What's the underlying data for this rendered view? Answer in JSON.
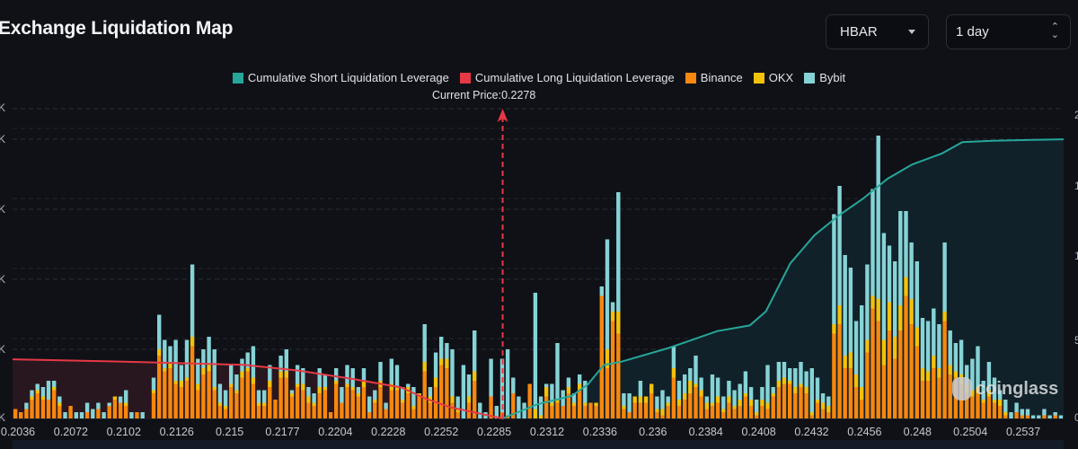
{
  "header": {
    "title": "Exchange Liquidation Map",
    "coin_select": {
      "value": "HBAR"
    },
    "period_select": {
      "value": "1 day"
    }
  },
  "watermark": "coinglass",
  "chart_data": {
    "type": "bar",
    "title": "Exchange Liquidation Map",
    "annotation": "Current Price:0.2278",
    "current_price": 0.2278,
    "legend": [
      {
        "name": "Cumulative Short Liquidation Leverage",
        "color": "#26a69a"
      },
      {
        "name": "Cumulative Long Liquidation Leverage",
        "color": "#e53945"
      },
      {
        "name": "Binance",
        "color": "#f7870f"
      },
      {
        "name": "OKX",
        "color": "#f2c10b"
      },
      {
        "name": "Bybit",
        "color": "#86d3d6"
      }
    ],
    "legend_position": "top-center",
    "x_tick_labels": [
      "0.2036",
      "0.2072",
      "0.2102",
      "0.2126",
      "0.215",
      "0.2177",
      "0.2204",
      "0.2228",
      "0.2252",
      "0.2285",
      "0.2312",
      "0.2336",
      "0.236",
      "0.2384",
      "0.2408",
      "0.2432",
      "0.2456",
      "0.248",
      "0.2504",
      "0.2537"
    ],
    "x_range": [
      0.2036,
      0.2555
    ],
    "left_axis_tick_labels": [
      "K",
      "K",
      "K",
      "K",
      "K",
      "K"
    ],
    "right_axis_tick_labels": [
      "2",
      "1",
      "1",
      "5",
      "0"
    ],
    "left_axis_relative_range": [
      0,
      1
    ],
    "right_axis_relative_range": [
      0,
      1
    ],
    "grid": true,
    "bars_note": "Stacked per price bin: binance, okx, bybit (relative to tallest bar = 1.0)",
    "series": [
      {
        "name": "Binance",
        "values": [
          0.03,
          0.02,
          0.03,
          0.06,
          0.08,
          0.06,
          0.06,
          0.09,
          0.04,
          0.0,
          0.04,
          0.0,
          0.0,
          0.02,
          0.0,
          0.03,
          0.0,
          0.04,
          0.06,
          0.05,
          0.04,
          0.0,
          0.02,
          0.0,
          0.0,
          0.08,
          0.2,
          0.15,
          0.16,
          0.11,
          0.1,
          0.12,
          0.23,
          0.09,
          0.14,
          0.15,
          0.09,
          0.04,
          0.03,
          0.1,
          0.08,
          0.13,
          0.15,
          0.11,
          0.04,
          0.04,
          0.1,
          0.06,
          0.13,
          0.13,
          0.07,
          0.1,
          0.09,
          0.05,
          0.04,
          0.08,
          0.09,
          0.02,
          0.11,
          0.05,
          0.1,
          0.09,
          0.07,
          0.1,
          0.02,
          0.05,
          0.1,
          0.03,
          0.09,
          0.09,
          0.05,
          0.08,
          0.03,
          0.07,
          0.15,
          0.05,
          0.1,
          0.17,
          0.16,
          0.05,
          0.02,
          0.0,
          0.05,
          0.12,
          0.0,
          0.0,
          0.07,
          0.0,
          0.02,
          0.01,
          0.08,
          0.0,
          0.0,
          0.11,
          0.0,
          0.0,
          0.07,
          0.04,
          0.05,
          0.04,
          0.08,
          0.04,
          0.09,
          0.04,
          0.05,
          0.04,
          0.39,
          0.16,
          0.31,
          0.27,
          0.03,
          0.02,
          0.05,
          0.05,
          0.05,
          0.08,
          0.02,
          0.01,
          0.04,
          0.13,
          0.04,
          0.06,
          0.08,
          0.1,
          0.07,
          0.03,
          0.04,
          0.05,
          0.02,
          0.05,
          0.03,
          0.04,
          0.07,
          0.04,
          0.01,
          0.04,
          0.03,
          0.07,
          0.1,
          0.11,
          0.11,
          0.08,
          0.1,
          0.08,
          0.01,
          0.05,
          0.03,
          0.02,
          0.27,
          0.3,
          0.16,
          0.16,
          0.1,
          0.06,
          0.21,
          0.35,
          0.31,
          0.17,
          0.28,
          0.19,
          0.28,
          0.39,
          0.3,
          0.23,
          0.12,
          0.12,
          0.16,
          0.13,
          0.31,
          0.14,
          0.13,
          0.11,
          0.08,
          0.07,
          0.08,
          0.05,
          0.07,
          0.05,
          0.04,
          0.01,
          0.0,
          0.02,
          0.01,
          0.01,
          0.0,
          0.0,
          0.01,
          0.0,
          0.01,
          0.0
        ]
      },
      {
        "name": "OKX",
        "values": [
          0.0,
          0.0,
          0.0,
          0.01,
          0.01,
          0.01,
          0.0,
          0.01,
          0.01,
          0.0,
          0.0,
          0.0,
          0.0,
          0.0,
          0.0,
          0.0,
          0.0,
          0.0,
          0.01,
          0.0,
          0.01,
          0.0,
          0.0,
          0.0,
          0.0,
          0.01,
          0.02,
          0.01,
          0.02,
          0.01,
          0.02,
          0.01,
          0.03,
          0.02,
          0.02,
          0.02,
          0.01,
          0.01,
          0.01,
          0.01,
          0.01,
          0.02,
          0.01,
          0.02,
          0.01,
          0.01,
          0.02,
          0.0,
          0.02,
          0.02,
          0.01,
          0.01,
          0.02,
          0.02,
          0.01,
          0.02,
          0.01,
          0.0,
          0.01,
          0.0,
          0.01,
          0.01,
          0.01,
          0.02,
          0.0,
          0.01,
          0.02,
          0.0,
          0.02,
          0.01,
          0.01,
          0.02,
          0.01,
          0.01,
          0.03,
          0.02,
          0.03,
          0.02,
          0.03,
          0.02,
          0.01,
          0.0,
          0.02,
          0.03,
          0.0,
          0.0,
          0.0,
          0.0,
          0.0,
          0.0,
          0.0,
          0.0,
          0.0,
          0.0,
          0.03,
          0.01,
          0.03,
          0.01,
          0.01,
          0.0,
          0.02,
          0.01,
          0.02,
          0.01,
          0.0,
          0.01,
          0.0,
          0.06,
          0.03,
          0.07,
          0.01,
          0.0,
          0.02,
          0.02,
          0.02,
          0.03,
          0.01,
          0.02,
          0.01,
          0.03,
          0.02,
          0.02,
          0.04,
          0.01,
          0.02,
          0.02,
          0.01,
          0.02,
          0.01,
          0.02,
          0.01,
          0.02,
          0.01,
          0.02,
          0.01,
          0.02,
          0.02,
          0.01,
          0.02,
          0.02,
          0.01,
          0.02,
          0.01,
          0.02,
          0.01,
          0.01,
          0.02,
          0.02,
          0.03,
          0.06,
          0.04,
          0.05,
          0.04,
          0.04,
          0.04,
          0.04,
          0.07,
          0.08,
          0.09,
          0.07,
          0.08,
          0.06,
          0.08,
          0.06,
          0.04,
          0.03,
          0.04,
          0.03,
          0.03,
          0.03,
          0.02,
          0.03,
          0.03,
          0.02,
          0.02,
          0.01,
          0.02,
          0.01,
          0.02,
          0.01,
          0.0,
          0.0,
          0.0,
          0.0,
          0.0,
          0.0,
          0.0,
          0.0,
          0.0,
          0.0
        ]
      },
      {
        "name": "Bybit",
        "values": [
          0.0,
          0.0,
          0.02,
          0.02,
          0.02,
          0.03,
          0.06,
          0.02,
          0.02,
          0.02,
          0.0,
          0.02,
          0.02,
          0.03,
          0.03,
          0.02,
          0.02,
          0.01,
          0.0,
          0.02,
          0.04,
          0.02,
          0.0,
          0.02,
          0.0,
          0.04,
          0.11,
          0.09,
          0.05,
          0.13,
          0.05,
          0.12,
          0.23,
          0.08,
          0.06,
          0.09,
          0.12,
          0.06,
          0.05,
          0.06,
          0.05,
          0.04,
          0.05,
          0.1,
          0.04,
          0.04,
          0.05,
          0.0,
          0.05,
          0.07,
          0.01,
          0.06,
          0.05,
          0.03,
          0.03,
          0.06,
          0.04,
          0.0,
          0.04,
          0.05,
          0.06,
          0.06,
          0.02,
          0.04,
          0.05,
          0.03,
          0.06,
          0.02,
          0.08,
          0.07,
          0.04,
          0.01,
          0.06,
          0.0,
          0.12,
          0.03,
          0.08,
          0.07,
          0.05,
          0.15,
          0.04,
          0.17,
          0.07,
          0.13,
          0.05,
          0.02,
          0.12,
          0.04,
          0.17,
          0.21,
          0.05,
          0.07,
          0.05,
          0.0,
          0.37,
          0.06,
          0.01,
          0.06,
          0.18,
          0.05,
          0.03,
          0.03,
          0.03,
          0.07,
          0.0,
          0.0,
          0.03,
          0.35,
          0.03,
          0.38,
          0.04,
          0.06,
          0.0,
          0.05,
          0.0,
          0.0,
          0.04,
          0.06,
          0.02,
          0.07,
          0.06,
          0.06,
          0.04,
          0.09,
          0.04,
          0.02,
          0.09,
          0.06,
          0.04,
          0.05,
          0.05,
          0.05,
          0.07,
          0.04,
          0.04,
          0.04,
          0.12,
          0.02,
          0.06,
          0.05,
          0.04,
          0.06,
          0.07,
          0.05,
          0.14,
          0.07,
          0.03,
          0.03,
          0.35,
          0.38,
          0.32,
          0.27,
          0.17,
          0.26,
          0.24,
          0.34,
          0.52,
          0.34,
          0.18,
          0.24,
          0.3,
          0.21,
          0.18,
          0.21,
          0.16,
          0.16,
          0.15,
          0.14,
          0.22,
          0.11,
          0.09,
          0.11,
          0.06,
          0.1,
          0.13,
          0.06,
          0.09,
          0.07,
          0.03,
          0.04,
          0.02,
          0.03,
          0.02,
          0.02,
          0.01,
          0.01,
          0.02,
          0.01,
          0.01,
          0.01
        ]
      },
      {
        "name": "Cumulative Long Liquidation Leverage",
        "x": [
          0.2036,
          0.21,
          0.215,
          0.2177,
          0.2204,
          0.2228,
          0.224,
          0.2252,
          0.2265,
          0.2278
        ],
        "values": [
          0.21,
          0.2,
          0.19,
          0.17,
          0.14,
          0.11,
          0.07,
          0.04,
          0.02,
          0.0
        ]
      },
      {
        "name": "Cumulative Short Liquidation Leverage",
        "x": [
          0.2278,
          0.2295,
          0.2312,
          0.232,
          0.2328,
          0.2336,
          0.236,
          0.2384,
          0.24,
          0.2408,
          0.242,
          0.2432,
          0.2444,
          0.2456,
          0.2468,
          0.248,
          0.2495,
          0.2505,
          0.252,
          0.2555
        ],
        "values": [
          0.0,
          0.05,
          0.08,
          0.12,
          0.19,
          0.2,
          0.25,
          0.31,
          0.33,
          0.38,
          0.55,
          0.65,
          0.72,
          0.78,
          0.85,
          0.9,
          0.94,
          0.98,
          0.985,
          0.99
        ]
      }
    ]
  }
}
